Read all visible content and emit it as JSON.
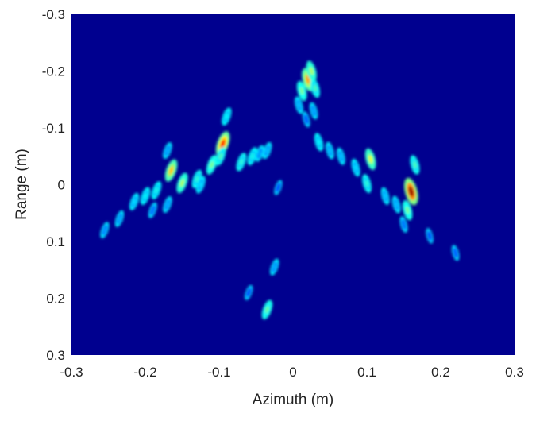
{
  "chart_data": {
    "type": "heatmap",
    "title": "",
    "xlabel": "Azimuth (m)",
    "ylabel": "Range (m)",
    "xlim": [
      -0.3,
      0.3
    ],
    "ylim": [
      -0.3,
      0.3
    ],
    "y_reversed": true,
    "xticks": [
      "-0.3",
      "-0.2",
      "-0.1",
      "0",
      "0.1",
      "0.2",
      "0.3"
    ],
    "yticks": [
      "-0.3",
      "-0.2",
      "-0.1",
      "0",
      "0.1",
      "0.2",
      "0.3"
    ],
    "colormap": "jet",
    "background_color": "#00008f",
    "grid": false,
    "scatterers": [
      [
        0.02,
        -0.185,
        0.72
      ],
      [
        0.025,
        -0.2,
        0.55
      ],
      [
        0.012,
        -0.165,
        0.5
      ],
      [
        0.03,
        -0.17,
        0.45
      ],
      [
        0.008,
        -0.14,
        0.32
      ],
      [
        0.028,
        -0.13,
        0.3
      ],
      [
        0.018,
        -0.115,
        0.22
      ],
      [
        -0.095,
        -0.072,
        0.85
      ],
      [
        -0.09,
        -0.12,
        0.38
      ],
      [
        -0.098,
        -0.05,
        0.45
      ],
      [
        -0.165,
        -0.025,
        0.68
      ],
      [
        -0.15,
        -0.003,
        0.55
      ],
      [
        -0.11,
        -0.035,
        0.5
      ],
      [
        -0.17,
        -0.06,
        0.3
      ],
      [
        -0.055,
        -0.05,
        0.4
      ],
      [
        -0.07,
        -0.04,
        0.42
      ],
      [
        -0.035,
        -0.06,
        0.32
      ],
      [
        -0.045,
        -0.055,
        0.3
      ],
      [
        -0.13,
        -0.01,
        0.42
      ],
      [
        -0.185,
        0.01,
        0.4
      ],
      [
        -0.2,
        0.02,
        0.38
      ],
      [
        -0.215,
        0.03,
        0.35
      ],
      [
        -0.125,
        0.0,
        0.35
      ],
      [
        -0.17,
        0.035,
        0.3
      ],
      [
        -0.235,
        0.06,
        0.3
      ],
      [
        -0.255,
        0.08,
        0.28
      ],
      [
        -0.19,
        0.045,
        0.25
      ],
      [
        0.16,
        0.012,
        0.97
      ],
      [
        0.165,
        -0.035,
        0.45
      ],
      [
        0.155,
        0.045,
        0.5
      ],
      [
        0.105,
        -0.045,
        0.6
      ],
      [
        0.1,
        -0.002,
        0.42
      ],
      [
        0.085,
        -0.03,
        0.35
      ],
      [
        0.035,
        -0.075,
        0.38
      ],
      [
        0.05,
        -0.06,
        0.32
      ],
      [
        0.065,
        -0.05,
        0.32
      ],
      [
        0.125,
        0.02,
        0.33
      ],
      [
        0.14,
        0.035,
        0.32
      ],
      [
        0.15,
        0.07,
        0.25
      ],
      [
        0.185,
        0.09,
        0.2
      ],
      [
        0.22,
        0.12,
        0.22
      ],
      [
        -0.035,
        0.22,
        0.48
      ],
      [
        -0.025,
        0.145,
        0.3
      ],
      [
        -0.06,
        0.19,
        0.2
      ],
      [
        -0.02,
        0.005,
        0.2
      ]
    ]
  }
}
